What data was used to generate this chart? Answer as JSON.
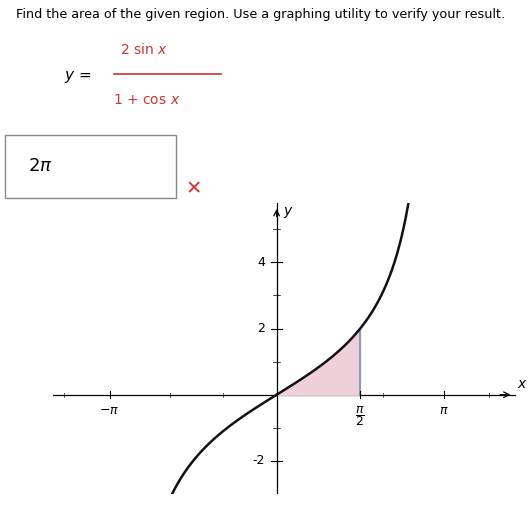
{
  "title_text": "Find the area of the given region. Use a graphing utility to verify your result.",
  "x_label": "x",
  "y_label": "y",
  "x_ticks": [
    -3.14159265,
    1.5707963,
    3.14159265
  ],
  "y_ticks": [
    -2,
    2,
    4
  ],
  "xlim": [
    -4.2,
    4.5
  ],
  "ylim": [
    -3.0,
    5.8
  ],
  "shade_x_start": 0.0,
  "shade_x_end": 1.5707963,
  "shade_color": "#f0d0d8",
  "shade_alpha": 1.0,
  "line_color": "#111111",
  "border_line_color": "#7090c0",
  "background_color": "#ffffff",
  "curve_lw": 1.8,
  "border_lw": 1.2,
  "answer_box_text": "2π",
  "formula_num": "2 sin x",
  "formula_den": "1 + cos x",
  "red_color": "#cc3333"
}
